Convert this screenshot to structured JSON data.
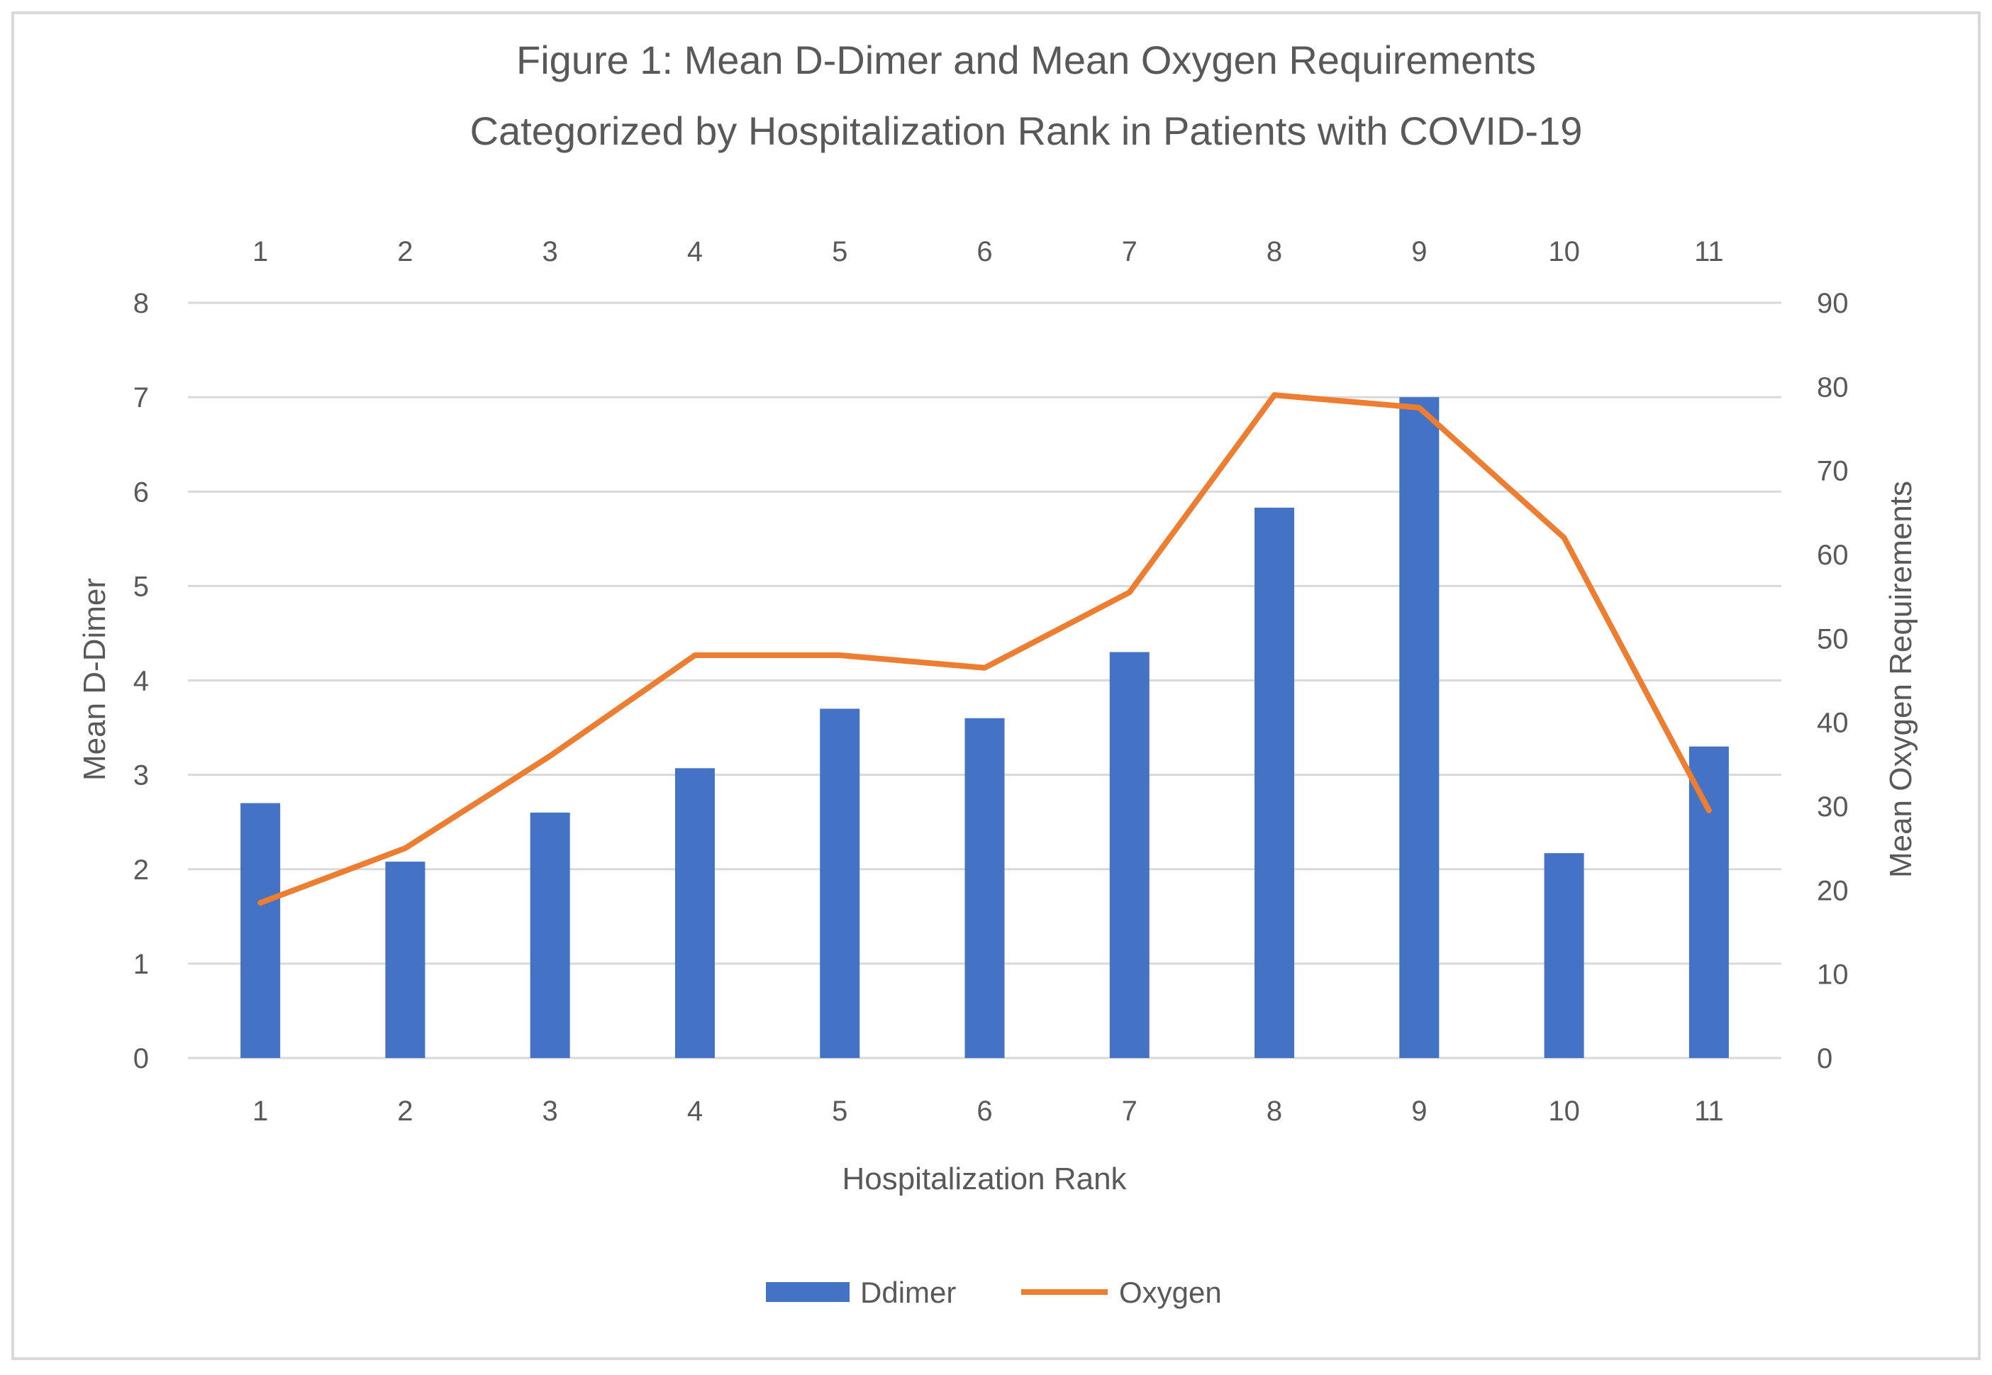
{
  "chart_data": {
    "type": "bar",
    "title_lines": [
      "Figure 1: Mean D-Dimer and Mean Oxygen Requirements",
      "Categorized by Hospitalization Rank in Patients with COVID-19"
    ],
    "categories": [
      "1",
      "2",
      "3",
      "4",
      "5",
      "6",
      "7",
      "8",
      "9",
      "10",
      "11"
    ],
    "xlabel": "Hospitalization Rank",
    "ylabel": "Mean D-Dimer",
    "y2label": "Mean Oxygen Requirements",
    "ylim": [
      0,
      8
    ],
    "y2lim": [
      0,
      90
    ],
    "y_ticks": [
      "0",
      "1",
      "2",
      "3",
      "4",
      "5",
      "6",
      "7",
      "8"
    ],
    "y2_ticks": [
      "0",
      "10",
      "20",
      "30",
      "40",
      "50",
      "60",
      "70",
      "80",
      "90"
    ],
    "grid": true,
    "legend_position": "bottom",
    "series": [
      {
        "name": "Ddimer",
        "type": "bar",
        "axis": "left",
        "color": "#4472c4",
        "values": [
          2.7,
          2.08,
          2.6,
          3.07,
          3.7,
          3.6,
          4.3,
          5.83,
          7.0,
          2.17,
          3.3
        ]
      },
      {
        "name": "Oxygen",
        "type": "line",
        "axis": "right",
        "color": "#ed7d31",
        "values": [
          18.5,
          25,
          36,
          48,
          48,
          46.5,
          55.5,
          79,
          77.5,
          62,
          29.5
        ]
      }
    ]
  }
}
